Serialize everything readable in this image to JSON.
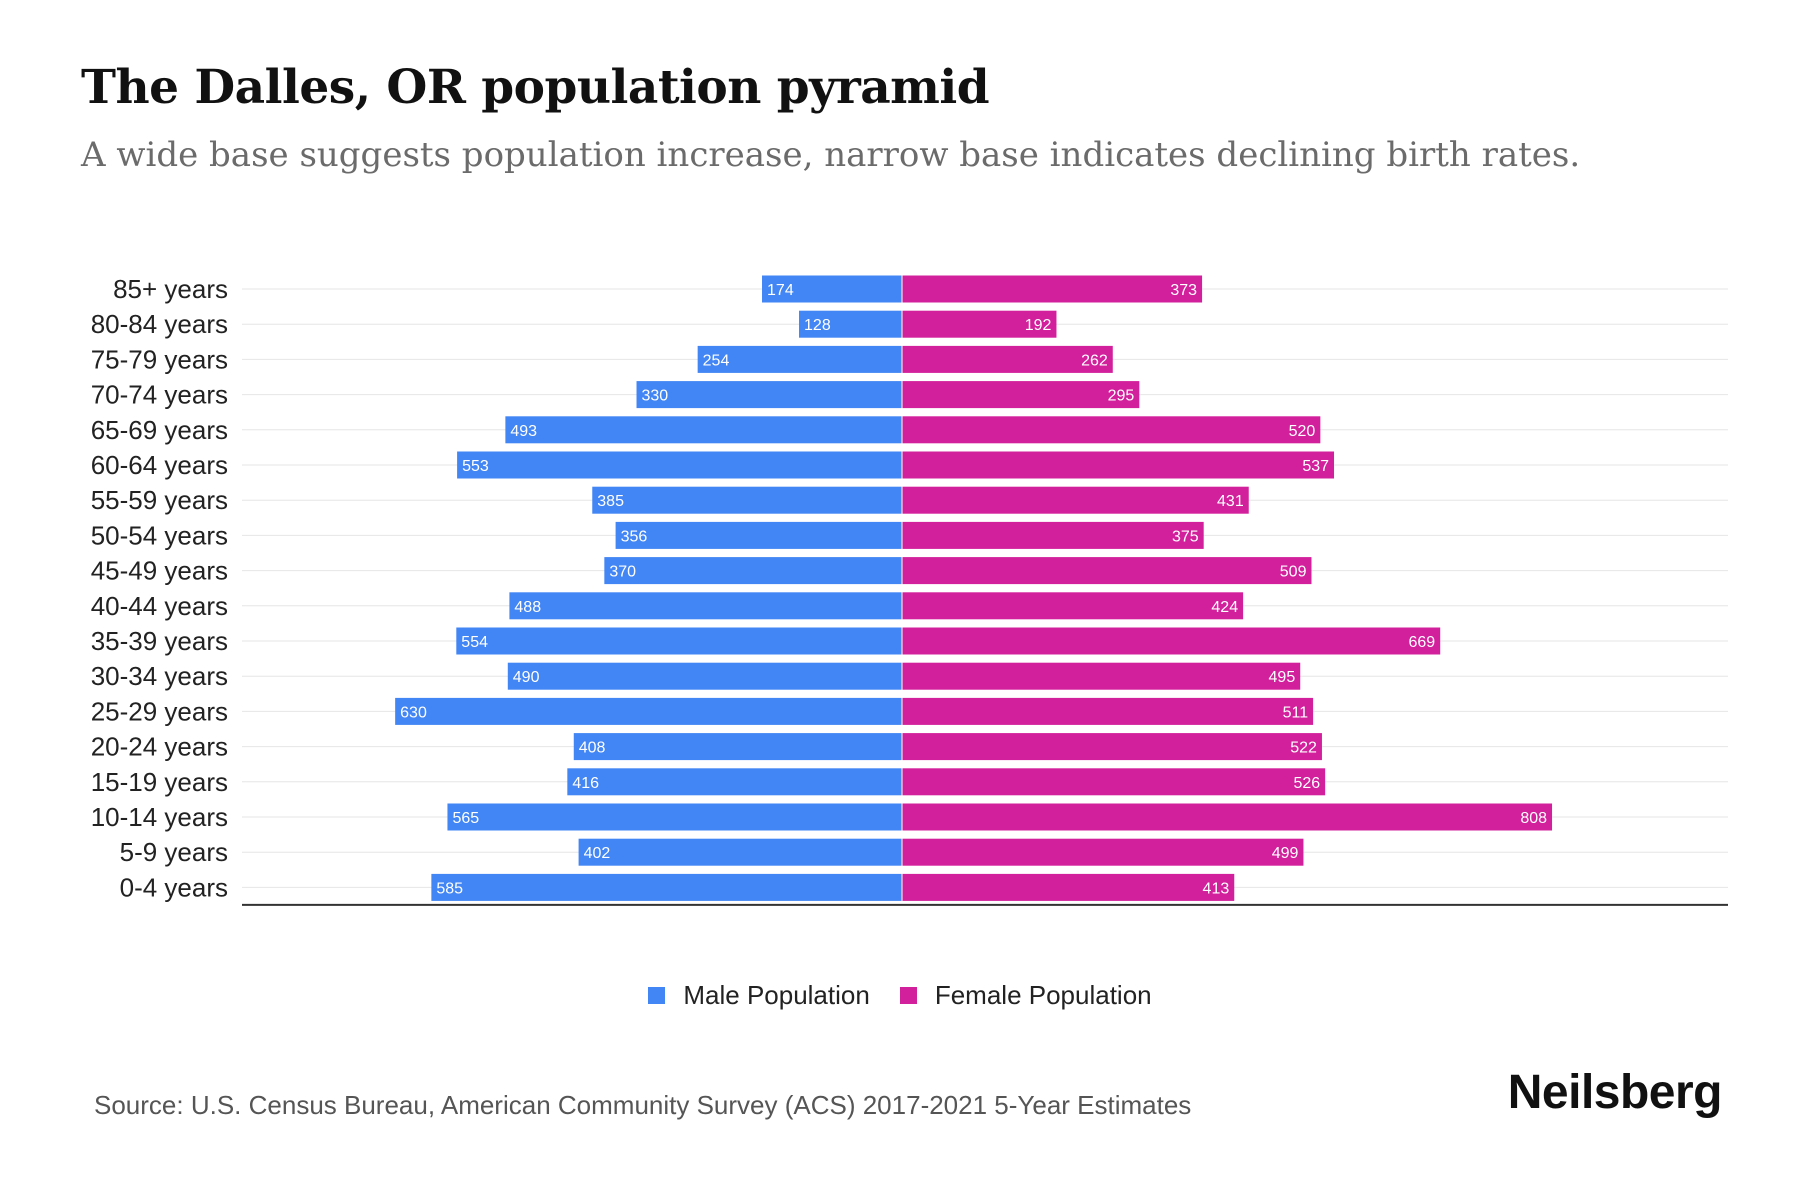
{
  "title": "The Dalles, OR population pyramid",
  "subtitle": "A wide base suggests population increase, narrow base indicates declining birth rates.",
  "colors": {
    "male": "#4285f4",
    "female": "#d21f9b",
    "grid": "#e6e6e6",
    "axis": "#333333",
    "label_text": "#ffffff"
  },
  "chart_data": {
    "type": "bar",
    "orientation": "horizontal-pyramid",
    "categories": [
      "85+ years",
      "80-84 years",
      "75-79 years",
      "70-74 years",
      "65-69 years",
      "60-64 years",
      "55-59 years",
      "50-54 years",
      "45-49 years",
      "40-44 years",
      "35-39 years",
      "30-34 years",
      "25-29 years",
      "20-24 years",
      "15-19 years",
      "10-14 years",
      "5-9 years",
      "0-4 years"
    ],
    "series": [
      {
        "name": "Male Population",
        "values": [
          174,
          128,
          254,
          330,
          493,
          553,
          385,
          356,
          370,
          488,
          554,
          490,
          630,
          408,
          416,
          565,
          402,
          585
        ]
      },
      {
        "name": "Female Population",
        "values": [
          373,
          192,
          262,
          295,
          520,
          537,
          431,
          375,
          509,
          424,
          669,
          495,
          511,
          522,
          526,
          808,
          499,
          413
        ]
      }
    ],
    "xlim": [
      -710,
      900
    ],
    "legend_position": "bottom-center"
  },
  "legend": {
    "male_label": "Male Population",
    "female_label": "Female Population"
  },
  "source": "Source: U.S. Census Bureau, American Community Survey (ACS) 2017-2021 5-Year Estimates",
  "brand": "Neilsberg"
}
